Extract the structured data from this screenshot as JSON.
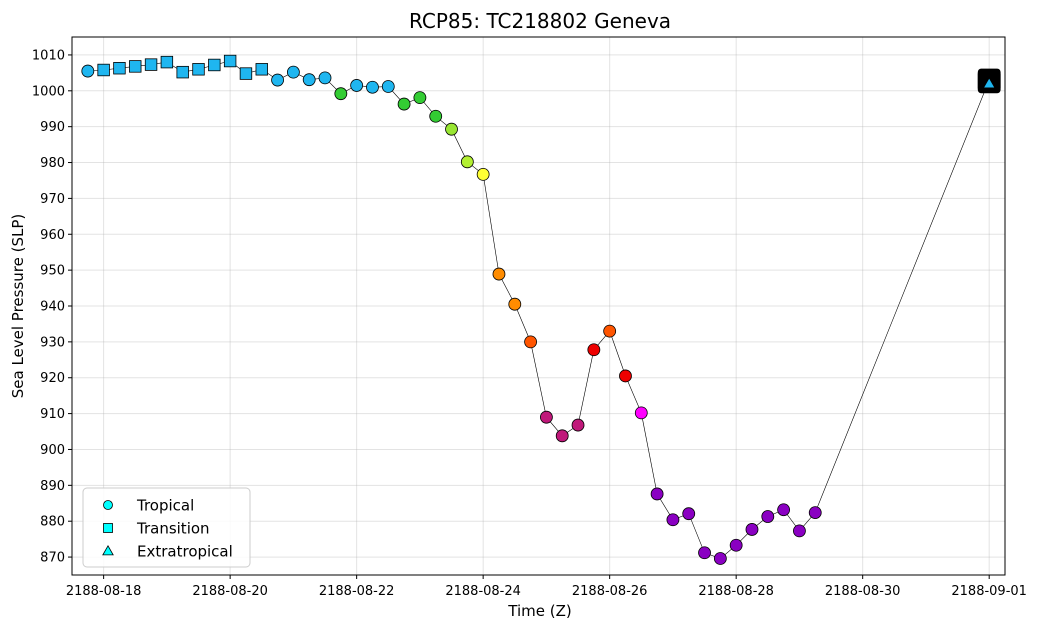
{
  "chart_data": {
    "type": "scatter",
    "title": "RCP85: TC218802 Geneva",
    "xlabel": "Time (Z)",
    "ylabel": "Sea Level Pressure (SLP)",
    "ylim": [
      865,
      1015
    ],
    "xlim": [
      "2188-08-17 12:00",
      "2188-09-01 06:00"
    ],
    "grid": true,
    "yticks": [
      870,
      880,
      890,
      900,
      910,
      920,
      930,
      940,
      950,
      960,
      970,
      980,
      990,
      1000,
      1010
    ],
    "xticks": [
      "2188-08-18",
      "2188-08-20",
      "2188-08-22",
      "2188-08-24",
      "2188-08-26",
      "2188-08-28",
      "2188-08-30",
      "2188-09-01"
    ],
    "legend": {
      "placement": "lower-left",
      "entries": [
        {
          "label": "Tropical",
          "marker": "circle",
          "color": "#00ffff"
        },
        {
          "label": "Transition",
          "marker": "square",
          "color": "#00ffff"
        },
        {
          "label": "Extratropical",
          "marker": "triangle",
          "color": "#00ffff"
        }
      ]
    },
    "track_line_color": "#000000",
    "points": [
      {
        "t": "2188-08-17 18:00",
        "slp": 1005.5,
        "marker": "circle",
        "color": "#1fb6f0"
      },
      {
        "t": "2188-08-18 00:00",
        "slp": 1005.8,
        "marker": "square",
        "color": "#1fb6f0"
      },
      {
        "t": "2188-08-18 06:00",
        "slp": 1006.3,
        "marker": "square",
        "color": "#1fb6f0"
      },
      {
        "t": "2188-08-18 12:00",
        "slp": 1006.8,
        "marker": "square",
        "color": "#1fb6f0"
      },
      {
        "t": "2188-08-18 18:00",
        "slp": 1007.3,
        "marker": "square",
        "color": "#1fb6f0"
      },
      {
        "t": "2188-08-19 00:00",
        "slp": 1008.0,
        "marker": "square",
        "color": "#1fb6f0"
      },
      {
        "t": "2188-08-19 06:00",
        "slp": 1005.2,
        "marker": "square",
        "color": "#1fb6f0"
      },
      {
        "t": "2188-08-19 12:00",
        "slp": 1006.0,
        "marker": "square",
        "color": "#1fb6f0"
      },
      {
        "t": "2188-08-19 18:00",
        "slp": 1007.2,
        "marker": "square",
        "color": "#1fb6f0"
      },
      {
        "t": "2188-08-20 00:00",
        "slp": 1008.3,
        "marker": "square",
        "color": "#1fb6f0"
      },
      {
        "t": "2188-08-20 06:00",
        "slp": 1004.8,
        "marker": "square",
        "color": "#1fb6f0"
      },
      {
        "t": "2188-08-20 12:00",
        "slp": 1006.0,
        "marker": "square",
        "color": "#1fb6f0"
      },
      {
        "t": "2188-08-20 18:00",
        "slp": 1003.0,
        "marker": "circle",
        "color": "#1fb6f0"
      },
      {
        "t": "2188-08-21 00:00",
        "slp": 1005.2,
        "marker": "circle",
        "color": "#1fb6f0"
      },
      {
        "t": "2188-08-21 06:00",
        "slp": 1003.1,
        "marker": "circle",
        "color": "#1fb6f0"
      },
      {
        "t": "2188-08-21 12:00",
        "slp": 1003.6,
        "marker": "circle",
        "color": "#1fb6f0"
      },
      {
        "t": "2188-08-21 18:00",
        "slp": 999.2,
        "marker": "circle",
        "color": "#33cc33"
      },
      {
        "t": "2188-08-22 00:00",
        "slp": 1001.5,
        "marker": "circle",
        "color": "#1fb6f0"
      },
      {
        "t": "2188-08-22 06:00",
        "slp": 1001.0,
        "marker": "circle",
        "color": "#1fb6f0"
      },
      {
        "t": "2188-08-22 12:00",
        "slp": 1001.2,
        "marker": "circle",
        "color": "#1fb6f0"
      },
      {
        "t": "2188-08-22 18:00",
        "slp": 996.3,
        "marker": "circle",
        "color": "#33cc33"
      },
      {
        "t": "2188-08-23 00:00",
        "slp": 998.1,
        "marker": "circle",
        "color": "#33cc33"
      },
      {
        "t": "2188-08-23 06:00",
        "slp": 992.9,
        "marker": "circle",
        "color": "#33cc33"
      },
      {
        "t": "2188-08-23 12:00",
        "slp": 989.3,
        "marker": "circle",
        "color": "#99e633"
      },
      {
        "t": "2188-08-23 18:00",
        "slp": 980.2,
        "marker": "circle",
        "color": "#b3f033"
      },
      {
        "t": "2188-08-24 00:00",
        "slp": 976.7,
        "marker": "circle",
        "color": "#ffff33"
      },
      {
        "t": "2188-08-24 06:00",
        "slp": 948.9,
        "marker": "circle",
        "color": "#ff8c00"
      },
      {
        "t": "2188-08-24 12:00",
        "slp": 940.5,
        "marker": "circle",
        "color": "#ff8c00"
      },
      {
        "t": "2188-08-24 18:00",
        "slp": 930.0,
        "marker": "circle",
        "color": "#ff5500"
      },
      {
        "t": "2188-08-25 00:00",
        "slp": 909.0,
        "marker": "circle",
        "color": "#c0187a"
      },
      {
        "t": "2188-08-25 06:00",
        "slp": 903.8,
        "marker": "circle",
        "color": "#c0187a"
      },
      {
        "t": "2188-08-25 12:00",
        "slp": 906.8,
        "marker": "circle",
        "color": "#c0187a"
      },
      {
        "t": "2188-08-25 18:00",
        "slp": 927.8,
        "marker": "circle",
        "color": "#ee0000"
      },
      {
        "t": "2188-08-26 00:00",
        "slp": 933.0,
        "marker": "circle",
        "color": "#ff5500"
      },
      {
        "t": "2188-08-26 06:00",
        "slp": 920.5,
        "marker": "circle",
        "color": "#ee0000"
      },
      {
        "t": "2188-08-26 12:00",
        "slp": 910.2,
        "marker": "circle",
        "color": "#ff00ff"
      },
      {
        "t": "2188-08-26 18:00",
        "slp": 887.6,
        "marker": "circle",
        "color": "#8a00c2"
      },
      {
        "t": "2188-08-27 00:00",
        "slp": 880.4,
        "marker": "circle",
        "color": "#8a00c2"
      },
      {
        "t": "2188-08-27 06:00",
        "slp": 882.1,
        "marker": "circle",
        "color": "#8a00c2"
      },
      {
        "t": "2188-08-27 12:00",
        "slp": 871.2,
        "marker": "circle",
        "color": "#8a00c2"
      },
      {
        "t": "2188-08-27 18:00",
        "slp": 869.6,
        "marker": "circle",
        "color": "#8a00c2"
      },
      {
        "t": "2188-08-28 00:00",
        "slp": 873.3,
        "marker": "circle",
        "color": "#8a00c2"
      },
      {
        "t": "2188-08-28 06:00",
        "slp": 877.7,
        "marker": "circle",
        "color": "#8a00c2"
      },
      {
        "t": "2188-08-28 12:00",
        "slp": 881.3,
        "marker": "circle",
        "color": "#8a00c2"
      },
      {
        "t": "2188-08-28 18:00",
        "slp": 883.2,
        "marker": "circle",
        "color": "#8a00c2"
      },
      {
        "t": "2188-08-29 00:00",
        "slp": 877.3,
        "marker": "circle",
        "color": "#8a00c2"
      },
      {
        "t": "2188-08-29 06:00",
        "slp": 882.4,
        "marker": "circle",
        "color": "#8a00c2"
      },
      {
        "t": "2188-09-01 00:00",
        "slp": 1003.0,
        "marker": "square",
        "color": "#000000"
      },
      {
        "t": "2188-09-01 00:00",
        "slp": 1002.5,
        "marker": "square",
        "color": "#000000"
      },
      {
        "t": "2188-09-01 00:00",
        "slp": 1002.0,
        "marker": "triangle",
        "color": "#1fb6f0"
      }
    ]
  }
}
